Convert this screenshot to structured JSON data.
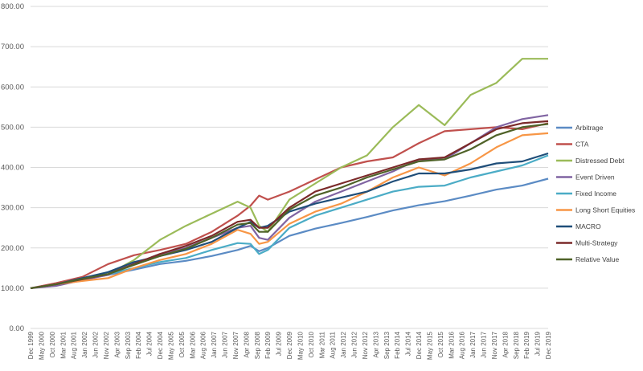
{
  "chart_data": {
    "type": "line",
    "title": "",
    "xlabel": "",
    "ylabel": "",
    "ylim": [
      0,
      800
    ],
    "yticks": [
      "0.00",
      "100.00",
      "200.00",
      "300.00",
      "400.00",
      "500.00",
      "600.00",
      "700.00",
      "800.00"
    ],
    "grid": true,
    "legend_position": "right",
    "x_tick_labels": [
      "Dec 1999",
      "May 2000",
      "Oct 2000",
      "Mar 2001",
      "Aug 2001",
      "Jan 2002",
      "Jun 2002",
      "Nov 2002",
      "Apr 2003",
      "Sep 2003",
      "Feb 2004",
      "Jul 2004",
      "Dec 2004",
      "May 2005",
      "Oct 2005",
      "Mar 2006",
      "Aug 2006",
      "Jan 2007",
      "Jun 2007",
      "Nov 2007",
      "Apr 2008",
      "Sep 2008",
      "Feb 2009",
      "Jul 2009",
      "Dec 2009",
      "May 2010",
      "Oct 2010",
      "Mar 2011",
      "Aug 2011",
      "Jan 2012",
      "Jun 2012",
      "Nov 2012",
      "Apr 2013",
      "Sep 2013",
      "Feb 2014",
      "Jul 2014",
      "Dec 2014",
      "May 2015",
      "Oct 2015",
      "Mar 2016",
      "Aug 2016",
      "Jan 2017",
      "Jun 2017",
      "Nov 2017",
      "Apr 2018",
      "Sep 2018",
      "Feb 2019",
      "Jul 2019",
      "Dec 2019"
    ],
    "x": [
      "Dec 1999",
      "Dec 2000",
      "Dec 2001",
      "Dec 2002",
      "Dec 2003",
      "Dec 2004",
      "Dec 2005",
      "Dec 2006",
      "Dec 2007",
      "Jun 2008",
      "Oct 2008",
      "Feb 2009",
      "Dec 2009",
      "Dec 2010",
      "Dec 2011",
      "Dec 2012",
      "Dec 2013",
      "Dec 2014",
      "Dec 2015",
      "Dec 2016",
      "Dec 2017",
      "Dec 2018",
      "Dec 2019"
    ],
    "series": [
      {
        "name": "Arbitrage",
        "color": "#5b8bc4",
        "values": [
          100,
          112,
          122,
          133,
          146,
          160,
          168,
          180,
          195,
          205,
          192,
          200,
          230,
          248,
          262,
          277,
          293,
          306,
          316,
          330,
          345,
          355,
          372
        ]
      },
      {
        "name": "CTA",
        "color": "#c0504d",
        "values": [
          100,
          113,
          128,
          160,
          182,
          195,
          210,
          240,
          280,
          305,
          330,
          320,
          340,
          370,
          400,
          415,
          425,
          460,
          490,
          495,
          500,
          495,
          510
        ]
      },
      {
        "name": "Distressed Debt",
        "color": "#9bbb59",
        "values": [
          100,
          108,
          123,
          135,
          170,
          220,
          255,
          285,
          315,
          300,
          255,
          240,
          320,
          360,
          400,
          430,
          500,
          555,
          505,
          580,
          610,
          670,
          670
        ]
      },
      {
        "name": "Event Driven",
        "color": "#8064a2",
        "values": [
          100,
          106,
          120,
          133,
          160,
          185,
          200,
          225,
          250,
          255,
          225,
          220,
          275,
          315,
          340,
          365,
          390,
          420,
          420,
          460,
          500,
          520,
          530
        ]
      },
      {
        "name": "Fixed Income",
        "color": "#4bacc6",
        "values": [
          100,
          110,
          123,
          135,
          150,
          165,
          175,
          195,
          212,
          210,
          185,
          195,
          250,
          280,
          300,
          320,
          340,
          352,
          355,
          375,
          390,
          405,
          430
        ]
      },
      {
        "name": "Long Short Equities",
        "color": "#f79646",
        "values": [
          100,
          110,
          118,
          125,
          150,
          170,
          185,
          210,
          245,
          235,
          210,
          215,
          260,
          290,
          310,
          340,
          375,
          400,
          380,
          410,
          450,
          480,
          485
        ]
      },
      {
        "name": "MACRO",
        "color": "#1f4e79",
        "values": [
          100,
          110,
          125,
          140,
          165,
          180,
          195,
          215,
          250,
          265,
          250,
          255,
          290,
          310,
          325,
          340,
          365,
          385,
          385,
          395,
          410,
          415,
          435
        ]
      },
      {
        "name": "Multi-Strategy",
        "color": "#7b2a2a",
        "values": [
          100,
          110,
          122,
          135,
          160,
          185,
          205,
          230,
          265,
          270,
          250,
          250,
          300,
          340,
          360,
          380,
          400,
          420,
          425,
          460,
          495,
          510,
          515
        ]
      },
      {
        "name": "Relative Value",
        "color": "#4f6228",
        "values": [
          100,
          110,
          123,
          135,
          158,
          180,
          198,
          225,
          258,
          262,
          240,
          240,
          295,
          330,
          350,
          375,
          395,
          415,
          420,
          445,
          480,
          500,
          508
        ]
      }
    ]
  }
}
